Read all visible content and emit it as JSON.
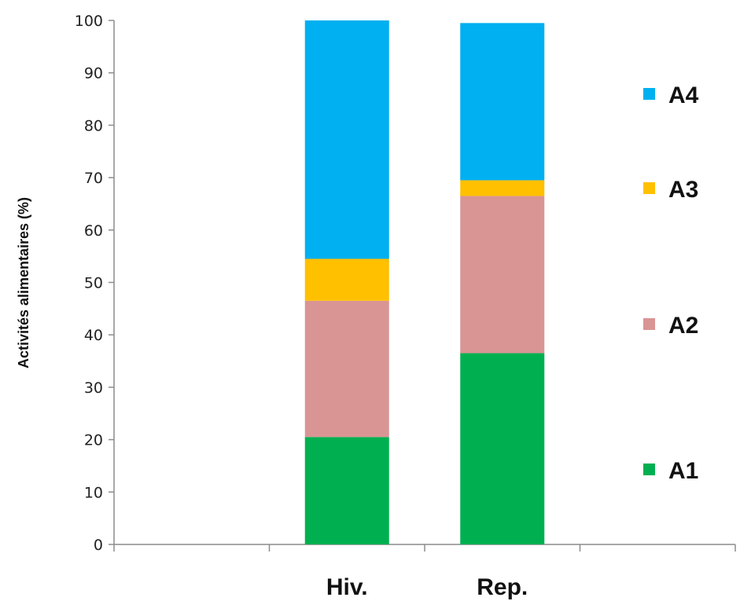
{
  "chart_data": {
    "type": "bar",
    "stacked": true,
    "title": "",
    "xlabel": "",
    "ylabel": "Activités alimentaires (%)",
    "ylim": [
      0,
      100
    ],
    "yticks": [
      0,
      10,
      20,
      30,
      40,
      50,
      60,
      70,
      80,
      90,
      100
    ],
    "categories": [
      "",
      "Hiv.",
      "Rep.",
      ""
    ],
    "grid": false,
    "legend_position": "right",
    "series": [
      {
        "name": "A1",
        "color": "#00b050",
        "values": [
          null,
          20.5,
          36.5,
          null
        ]
      },
      {
        "name": "A2",
        "color": "#d99594",
        "values": [
          null,
          26,
          30,
          null
        ]
      },
      {
        "name": "A3",
        "color": "#ffc000",
        "values": [
          null,
          8,
          3,
          null
        ]
      },
      {
        "name": "A4",
        "color": "#00b0f0",
        "values": [
          null,
          45.5,
          30,
          null
        ]
      }
    ]
  }
}
